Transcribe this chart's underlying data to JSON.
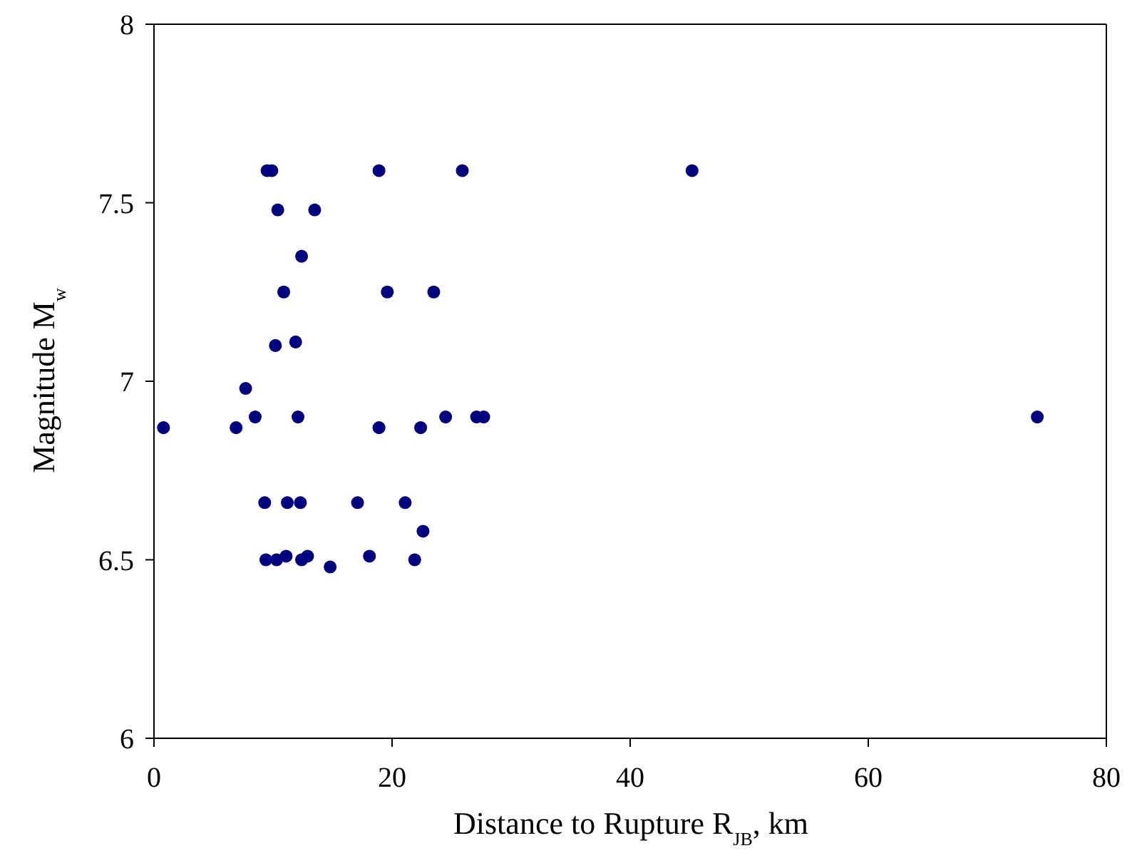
{
  "chart_data": {
    "type": "scatter",
    "xlabel": "Distance to Rupture R$_{JB}$, km",
    "ylabel": "Magnitude M$_{w}$",
    "x": [
      9.5,
      9.9,
      18.9,
      25.9,
      45.2,
      10.4,
      13.5,
      12.4,
      10.9,
      19.6,
      23.5,
      10.2,
      11.9,
      7.7,
      8.5,
      12.1,
      24.5,
      27.1,
      27.7,
      74.2,
      0.8,
      6.9,
      18.9,
      22.4,
      9.3,
      11.2,
      12.3,
      17.1,
      21.1,
      22.6,
      9.4,
      10.3,
      11.1,
      12.4,
      12.9,
      14.8,
      18.1,
      21.9
    ],
    "values": [
      7.59,
      7.59,
      7.59,
      7.59,
      7.59,
      7.48,
      7.48,
      7.35,
      7.25,
      7.25,
      7.25,
      7.1,
      7.11,
      6.98,
      6.9,
      6.9,
      6.9,
      6.9,
      6.9,
      6.9,
      6.87,
      6.87,
      6.87,
      6.87,
      6.66,
      6.66,
      6.66,
      6.66,
      6.66,
      6.58,
      6.5,
      6.5,
      6.51,
      6.5,
      6.51,
      6.48,
      6.51,
      6.5
    ],
    "color": "#000080",
    "marker": "circle",
    "xlim": [
      0,
      80
    ],
    "xticks": [
      0,
      20,
      40,
      60,
      80
    ],
    "ylim": [
      6,
      8
    ],
    "yticks": [
      6,
      6.5,
      7,
      7.5,
      8
    ]
  }
}
